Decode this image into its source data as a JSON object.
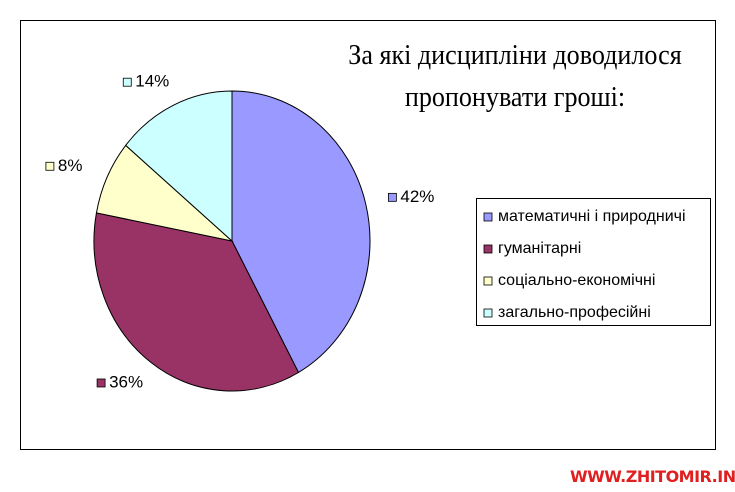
{
  "chart_data": {
    "type": "pie",
    "title": "За які дисципліни доводилося пропонувати гроші:",
    "categories": [
      "математичні і природничі",
      "гуманітарні",
      "соціально-економічні",
      "загально-професійні"
    ],
    "values": [
      42,
      36,
      8,
      14
    ],
    "value_labels": [
      "42%",
      "36%",
      "8%",
      "14%"
    ],
    "colors": [
      "#9999ff",
      "#993366",
      "#ffffcc",
      "#ccffff"
    ],
    "legend": "right"
  },
  "watermark": "WWW.ZHITOMIR.INFO"
}
